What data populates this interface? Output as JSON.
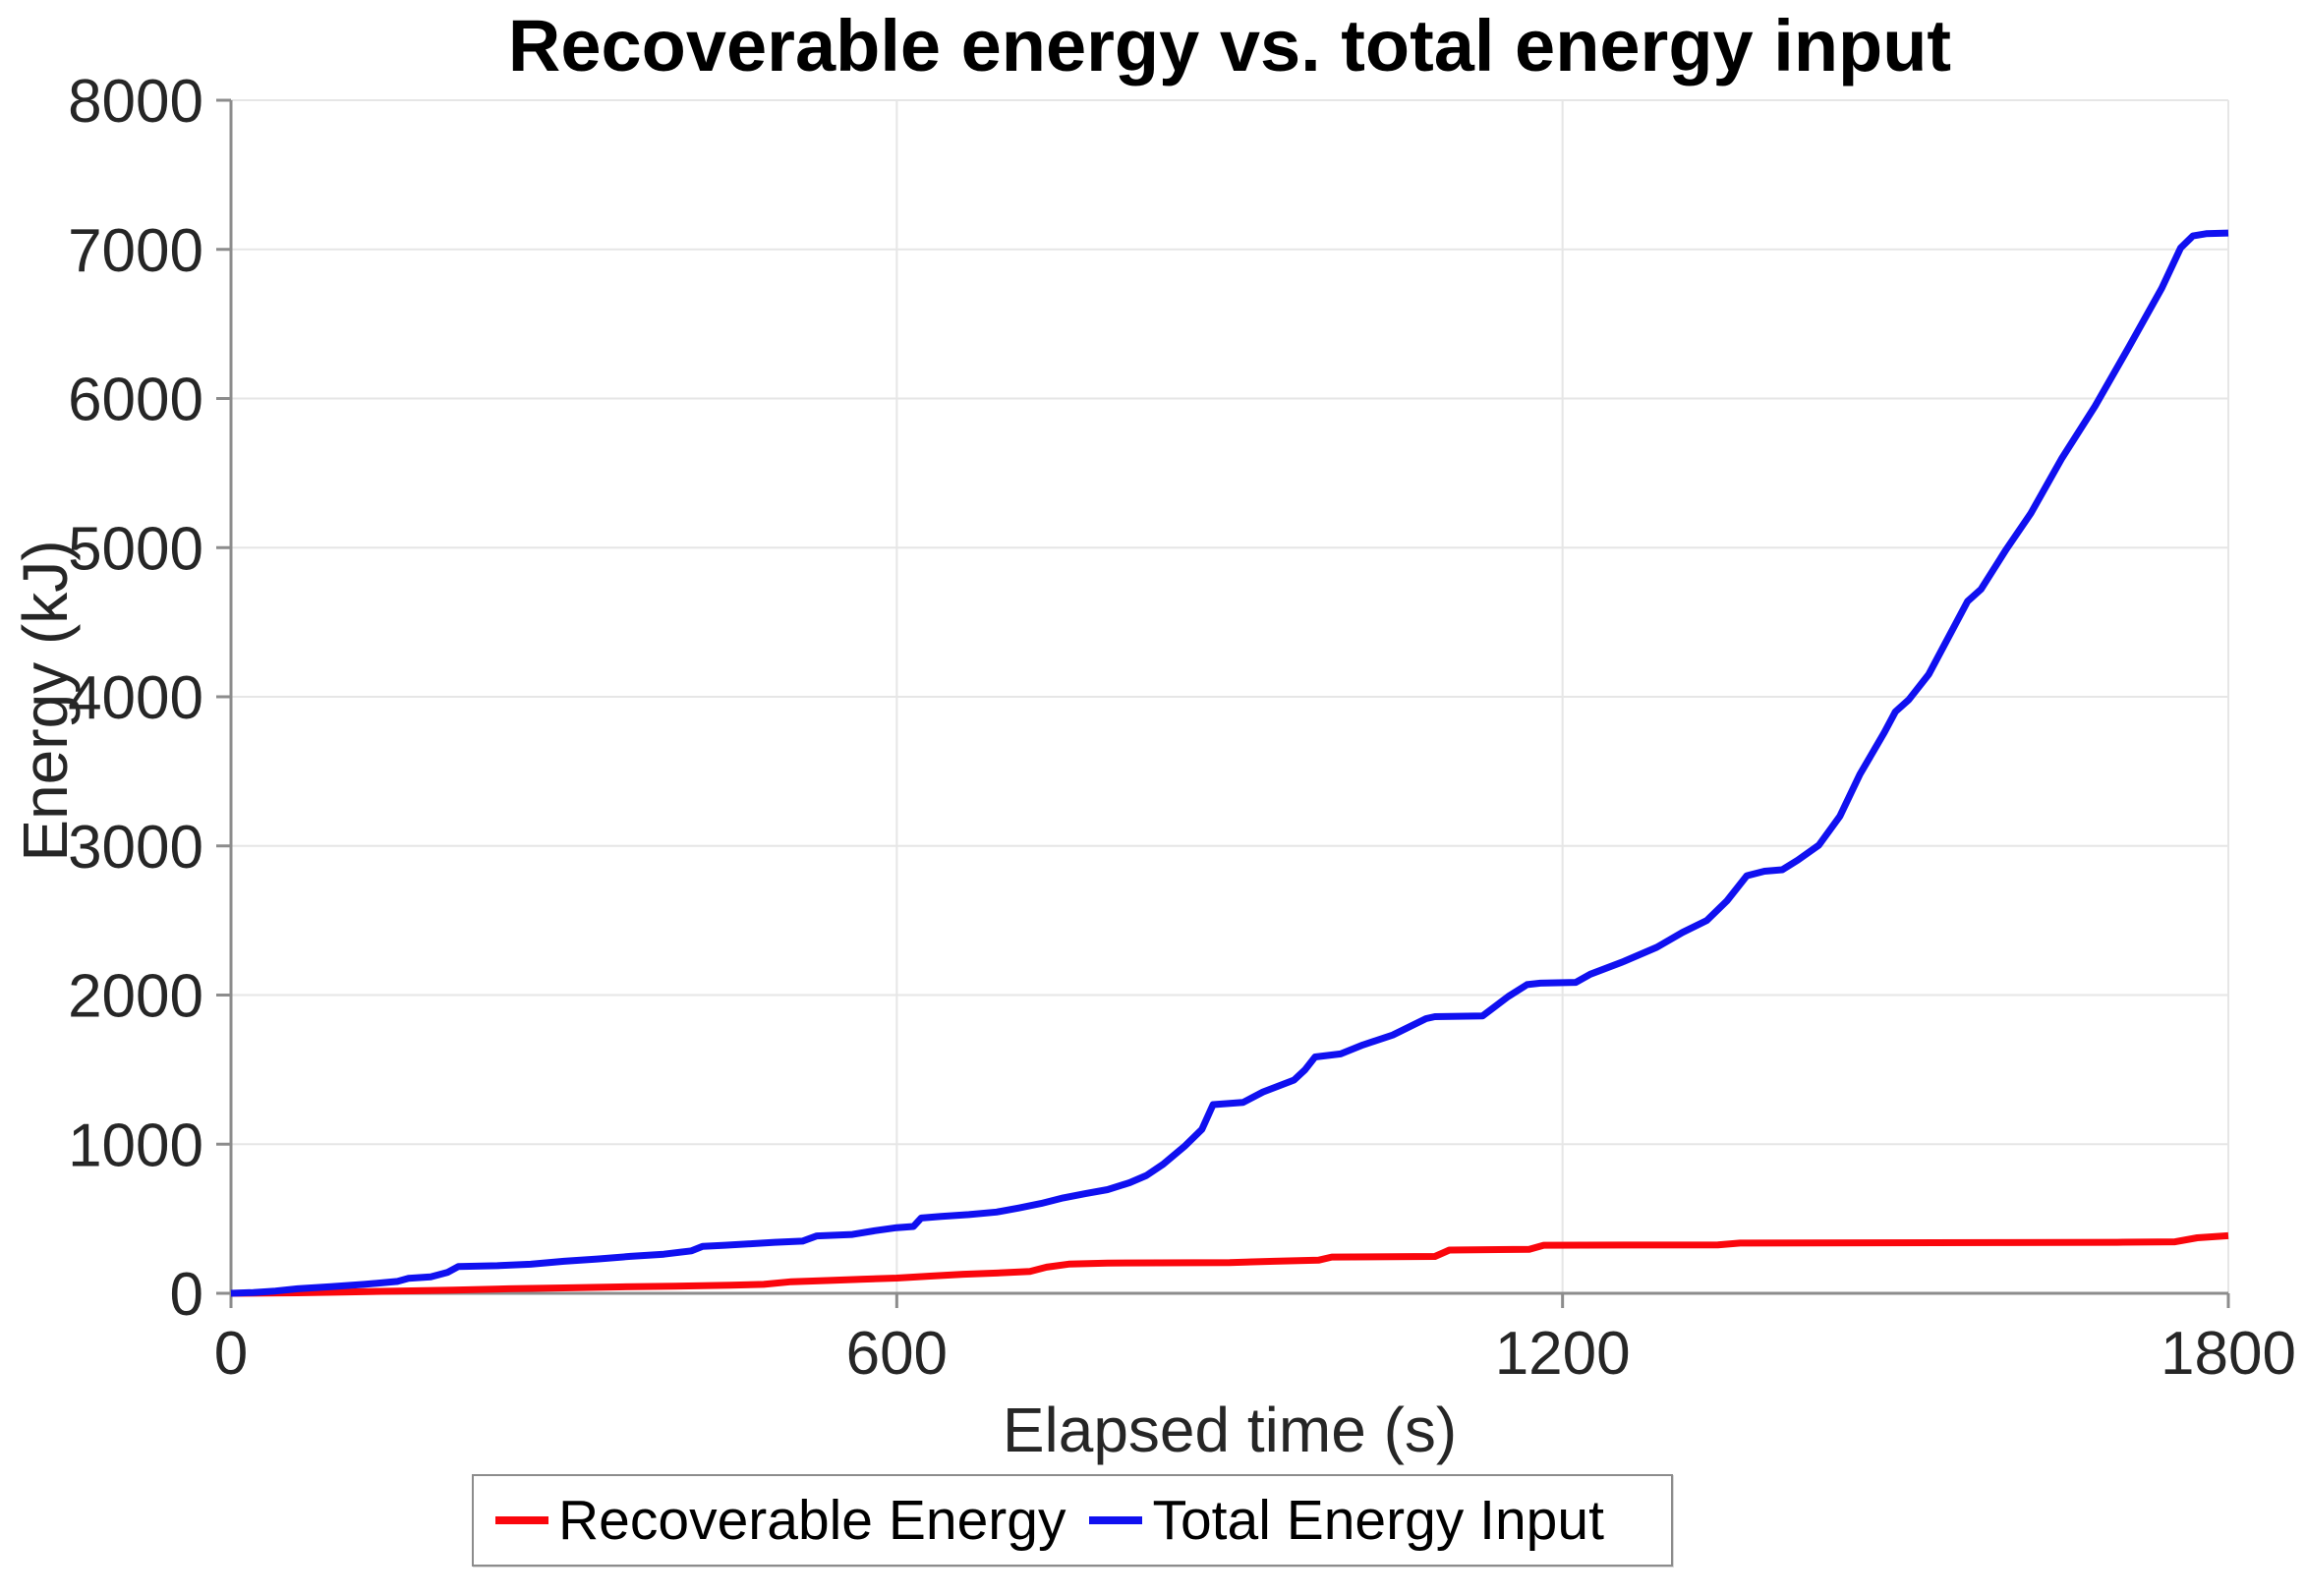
{
  "chart_data": {
    "type": "line",
    "title": "Recoverable energy vs. total energy input",
    "xlabel": "Elapsed time (s)",
    "ylabel": "Energy (kJ)",
    "xlim": [
      0,
      1800
    ],
    "ylim": [
      0,
      8000
    ],
    "xticks": [
      0,
      600,
      1200,
      1800
    ],
    "yticks": [
      0,
      1000,
      2000,
      3000,
      4000,
      5000,
      6000,
      7000,
      8000
    ],
    "grid": true,
    "legend_position": "bottom-outside",
    "colors": {
      "grid": "#e6e6e6",
      "axis": "#8c8c8c",
      "tick_label": "#262626",
      "background": "#ffffff"
    },
    "series": [
      {
        "name": "Recoverable Energy",
        "color": "#fa060c",
        "points": [
          [
            0,
            0
          ],
          [
            60,
            3
          ],
          [
            100,
            8
          ],
          [
            150,
            15
          ],
          [
            200,
            22
          ],
          [
            250,
            30
          ],
          [
            300,
            36
          ],
          [
            350,
            43
          ],
          [
            400,
            48
          ],
          [
            450,
            55
          ],
          [
            480,
            60
          ],
          [
            505,
            78
          ],
          [
            540,
            86
          ],
          [
            570,
            95
          ],
          [
            600,
            102
          ],
          [
            630,
            115
          ],
          [
            660,
            128
          ],
          [
            690,
            136
          ],
          [
            720,
            146
          ],
          [
            735,
            175
          ],
          [
            755,
            196
          ],
          [
            790,
            203
          ],
          [
            900,
            206
          ],
          [
            940,
            215
          ],
          [
            980,
            222
          ],
          [
            992,
            243
          ],
          [
            1085,
            247
          ],
          [
            1098,
            290
          ],
          [
            1170,
            295
          ],
          [
            1183,
            322
          ],
          [
            1340,
            325
          ],
          [
            1360,
            337
          ],
          [
            1600,
            340
          ],
          [
            1700,
            342
          ],
          [
            1752,
            345
          ],
          [
            1772,
            372
          ],
          [
            1800,
            386
          ]
        ]
      },
      {
        "name": "Total Energy Input",
        "color": "#1010f0",
        "points": [
          [
            0,
            0
          ],
          [
            20,
            5
          ],
          [
            40,
            15
          ],
          [
            60,
            30
          ],
          [
            90,
            45
          ],
          [
            120,
            60
          ],
          [
            150,
            80
          ],
          [
            160,
            100
          ],
          [
            180,
            110
          ],
          [
            195,
            140
          ],
          [
            205,
            180
          ],
          [
            240,
            185
          ],
          [
            270,
            195
          ],
          [
            300,
            215
          ],
          [
            330,
            230
          ],
          [
            360,
            248
          ],
          [
            390,
            262
          ],
          [
            415,
            285
          ],
          [
            425,
            315
          ],
          [
            445,
            322
          ],
          [
            470,
            333
          ],
          [
            490,
            342
          ],
          [
            515,
            350
          ],
          [
            528,
            385
          ],
          [
            560,
            395
          ],
          [
            580,
            420
          ],
          [
            600,
            440
          ],
          [
            615,
            448
          ],
          [
            622,
            505
          ],
          [
            640,
            515
          ],
          [
            665,
            528
          ],
          [
            690,
            545
          ],
          [
            710,
            572
          ],
          [
            730,
            602
          ],
          [
            750,
            640
          ],
          [
            770,
            668
          ],
          [
            790,
            695
          ],
          [
            810,
            742
          ],
          [
            825,
            790
          ],
          [
            840,
            865
          ],
          [
            860,
            990
          ],
          [
            875,
            1100
          ],
          [
            885,
            1265
          ],
          [
            912,
            1280
          ],
          [
            930,
            1350
          ],
          [
            958,
            1430
          ],
          [
            968,
            1500
          ],
          [
            977,
            1585
          ],
          [
            1000,
            1605
          ],
          [
            1020,
            1665
          ],
          [
            1047,
            1732
          ],
          [
            1077,
            1842
          ],
          [
            1085,
            1855
          ],
          [
            1128,
            1860
          ],
          [
            1151,
            1990
          ],
          [
            1168,
            2070
          ],
          [
            1180,
            2080
          ],
          [
            1212,
            2085
          ],
          [
            1225,
            2140
          ],
          [
            1255,
            2225
          ],
          [
            1285,
            2320
          ],
          [
            1308,
            2420
          ],
          [
            1330,
            2500
          ],
          [
            1348,
            2630
          ],
          [
            1366,
            2800
          ],
          [
            1382,
            2830
          ],
          [
            1398,
            2840
          ],
          [
            1412,
            2905
          ],
          [
            1431,
            3005
          ],
          [
            1450,
            3200
          ],
          [
            1468,
            3480
          ],
          [
            1490,
            3760
          ],
          [
            1500,
            3900
          ],
          [
            1512,
            3980
          ],
          [
            1530,
            4150
          ],
          [
            1550,
            4430
          ],
          [
            1565,
            4640
          ],
          [
            1577,
            4720
          ],
          [
            1600,
            4990
          ],
          [
            1622,
            5230
          ],
          [
            1650,
            5600
          ],
          [
            1680,
            5950
          ],
          [
            1710,
            6340
          ],
          [
            1740,
            6740
          ],
          [
            1757,
            7010
          ],
          [
            1768,
            7090
          ],
          [
            1780,
            7105
          ],
          [
            1800,
            7110
          ]
        ]
      }
    ]
  }
}
